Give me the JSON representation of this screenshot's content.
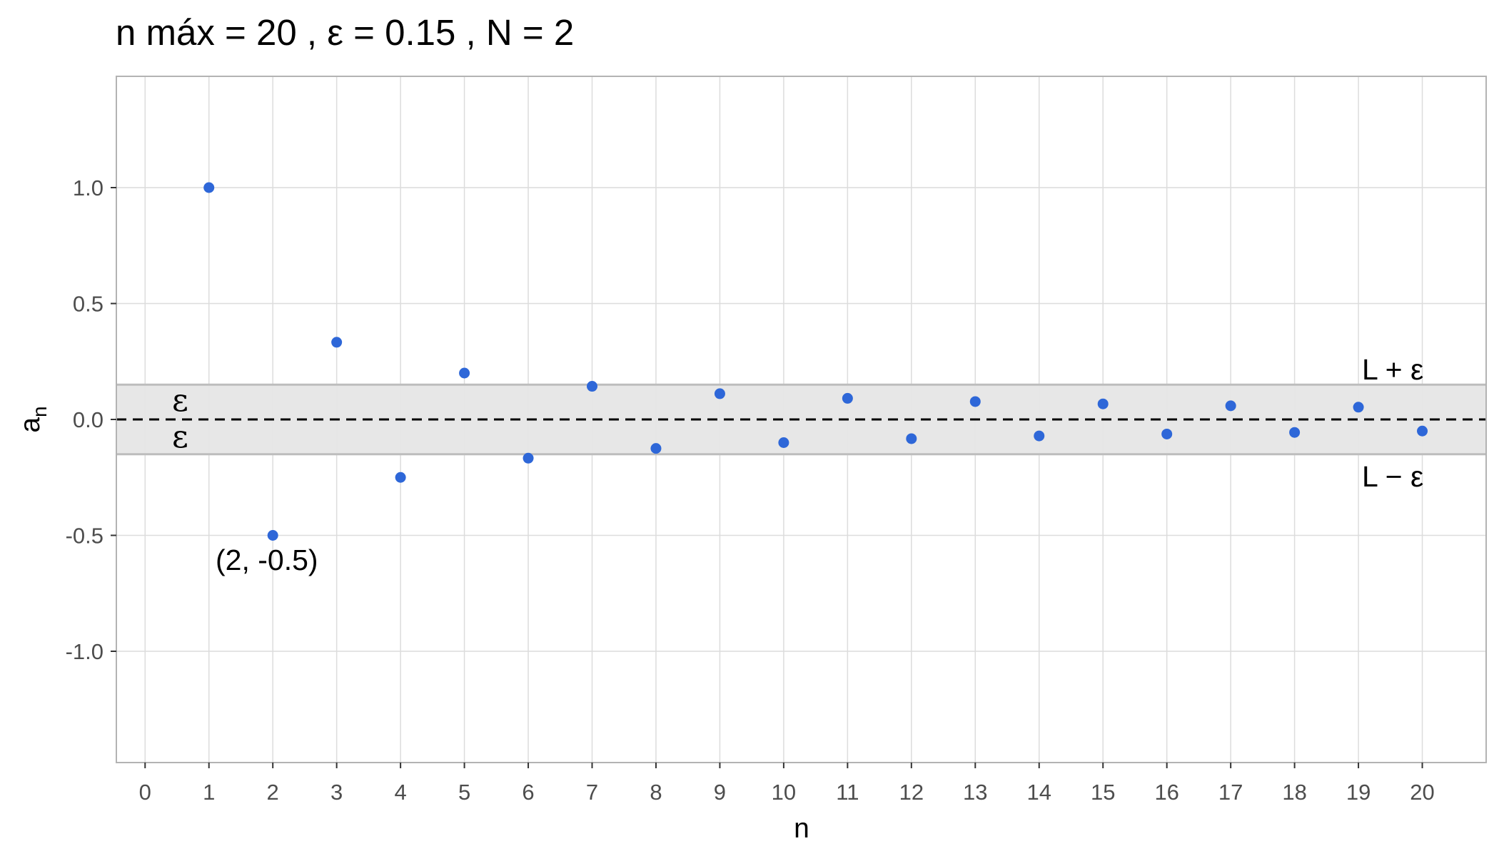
{
  "chart_data": {
    "type": "scatter",
    "title": "n máx = 20 ,  ε = 0.15 ,  N = 2",
    "xlabel": "n",
    "ylabel": "a",
    "ylabel_subscript": "n",
    "x_ticks": [
      0,
      1,
      2,
      3,
      4,
      5,
      6,
      7,
      8,
      9,
      10,
      11,
      12,
      13,
      14,
      15,
      16,
      17,
      18,
      19,
      20
    ],
    "y_ticks": [
      1.0,
      0.5,
      0.0,
      -0.5,
      -1.0
    ],
    "y_tick_labels": [
      "1.0",
      "0.5",
      "0.0",
      "-0.5",
      "-1.0"
    ],
    "xlim": [
      -0.45,
      21.0
    ],
    "ylim": [
      -1.48,
      1.48
    ],
    "grid": true,
    "limit_L": 0,
    "epsilon": 0.15,
    "points": {
      "x": [
        1,
        2,
        3,
        4,
        5,
        6,
        7,
        8,
        9,
        10,
        11,
        12,
        13,
        14,
        15,
        16,
        17,
        18,
        19,
        20
      ],
      "y": [
        1.0,
        -0.5,
        0.333,
        -0.25,
        0.2,
        -0.167,
        0.143,
        -0.125,
        0.111,
        -0.1,
        0.091,
        -0.083,
        0.077,
        -0.071,
        0.067,
        -0.063,
        0.059,
        -0.056,
        0.053,
        -0.05
      ]
    },
    "annotations": {
      "point_label": "(2, -0.5)",
      "upper_band_label": "L + ε",
      "lower_band_label": "L − ε",
      "epsilon_upper": "ε",
      "epsilon_lower": "ε"
    },
    "colors": {
      "points": "#2e67d8",
      "band_fill": "#e6e6e6",
      "band_edge": "#bdbdbd",
      "grid": "#dcdcdc",
      "limit_line": "#000000",
      "panel_border": "#b3b3b3"
    }
  }
}
